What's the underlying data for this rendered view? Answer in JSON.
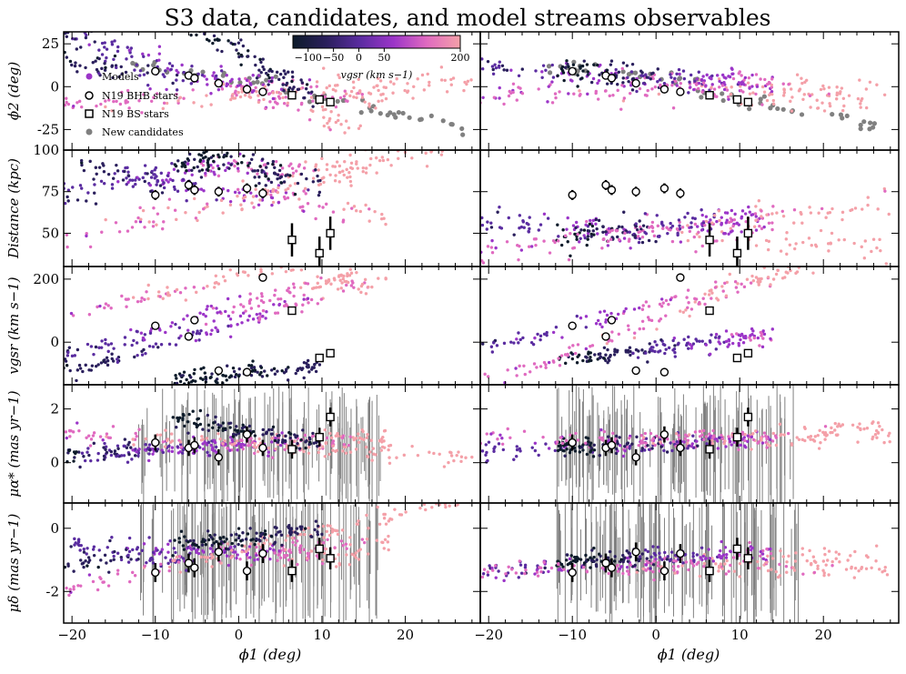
{
  "chart_data": {
    "type": "scatter",
    "title": "S3 data, candidates, and model streams observables",
    "xlabel": "ϕ1 (deg)",
    "xlim": [
      -21,
      29
    ],
    "xticks": [
      -20,
      -10,
      0,
      10,
      20
    ],
    "colorbar": {
      "label": "vgsr (km s−1)",
      "range": [
        -130,
        200
      ],
      "ticks": [
        -100,
        -50,
        0,
        50,
        200
      ],
      "colors": [
        "#0d1b2a",
        "#2a1f5c",
        "#5a2ca0",
        "#9b35c8",
        "#e06ac0",
        "#f4a0a8"
      ]
    },
    "legend": {
      "position": "top-left of first panel",
      "entries": [
        "Models",
        "N19 BHB stars",
        "N19 BS stars",
        "New candidates"
      ]
    },
    "rows": [
      {
        "key": "phi2",
        "ylabel": "ϕ2 (deg)",
        "ylim": [
          -37,
          32
        ],
        "yticks": [
          -25,
          0,
          25
        ]
      },
      {
        "key": "dist",
        "ylabel": "Distance (kpc)",
        "ylim": [
          30,
          100
        ],
        "yticks": [
          50,
          75,
          100
        ]
      },
      {
        "key": "vgsr",
        "ylabel": "vgsr (km s−1)",
        "ylim": [
          -135,
          240
        ],
        "yticks": [
          0,
          200
        ]
      },
      {
        "key": "pmra",
        "ylabel": "μα* (mas yr−1)",
        "ylim": [
          -1.5,
          2.9
        ],
        "yticks": [
          0,
          2
        ]
      },
      {
        "key": "pmdec",
        "ylabel": "μδ (mas yr−1)",
        "ylim": [
          -3,
          0.8
        ],
        "yticks": [
          -2,
          0
        ]
      }
    ],
    "bhb_stars": {
      "phi1": [
        -10,
        -6,
        -5.3,
        -2.4,
        1,
        2.9
      ],
      "phi2": [
        9,
        6.5,
        5,
        2,
        -1.5,
        -3
      ],
      "dist": [
        73,
        79,
        76,
        75,
        77,
        74
      ],
      "vgsr": [
        52,
        18,
        70,
        -90,
        -95,
        205
      ],
      "pmra": [
        0.75,
        0.55,
        0.65,
        0.2,
        1.05,
        0.55
      ],
      "pmdec": [
        -1.4,
        -1.1,
        -1.25,
        -0.75,
        -1.35,
        -0.8
      ]
    },
    "bs_stars": {
      "phi1": [
        6.4,
        9.7,
        11
      ],
      "phi2": [
        -5,
        -7.5,
        -9
      ],
      "dist": [
        46,
        38,
        50
      ],
      "vgsr": [
        100,
        -50,
        -35
      ],
      "pmra": [
        0.5,
        0.95,
        1.7
      ],
      "pmdec": [
        -1.35,
        -0.65,
        -0.95
      ]
    }
  }
}
